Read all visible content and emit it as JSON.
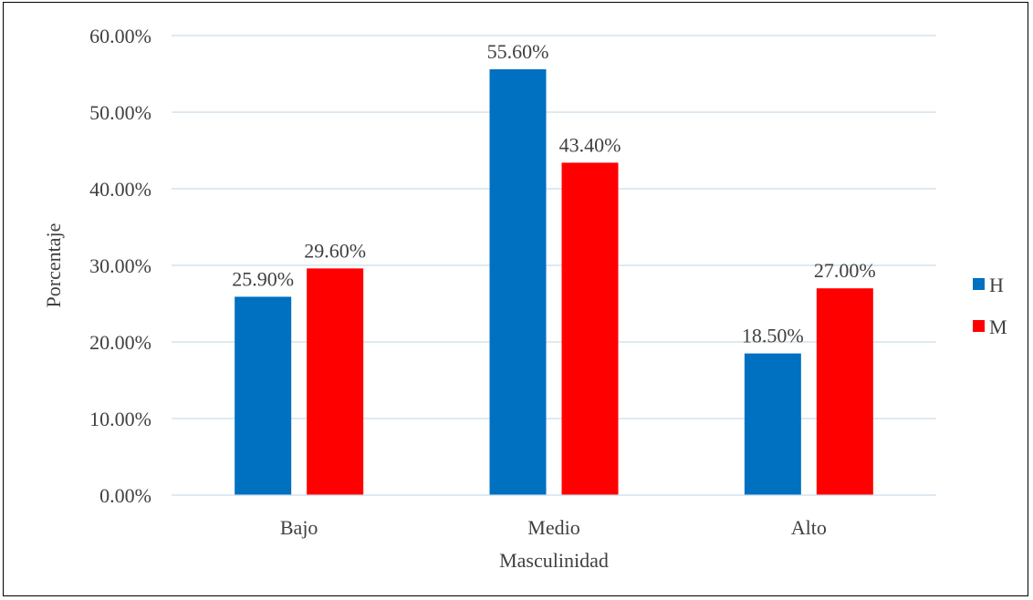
{
  "chart_data": {
    "type": "bar",
    "title": "",
    "xlabel": "Masculinidad",
    "ylabel": "Porcentaje",
    "categories": [
      "Bajo",
      "Medio",
      "Alto"
    ],
    "series": [
      {
        "name": "H",
        "color": "#0070C0",
        "values": [
          25.9,
          55.6,
          18.5
        ],
        "labels": [
          "25.90%",
          "55.60%",
          "18.50%"
        ]
      },
      {
        "name": "M",
        "color": "#FF0000",
        "values": [
          29.6,
          43.4,
          27.0
        ],
        "labels": [
          "29.60%",
          "43.40%",
          "27.00%"
        ]
      }
    ],
    "ylim": [
      0,
      60
    ],
    "yticks": [
      0,
      10,
      20,
      30,
      40,
      50,
      60
    ],
    "ytick_labels": [
      "0.00%",
      "10.00%",
      "20.00%",
      "30.00%",
      "40.00%",
      "50.00%",
      "60.00%"
    ],
    "grid": true,
    "gridline_color": "#C9DDEA",
    "legend_position": "right"
  }
}
